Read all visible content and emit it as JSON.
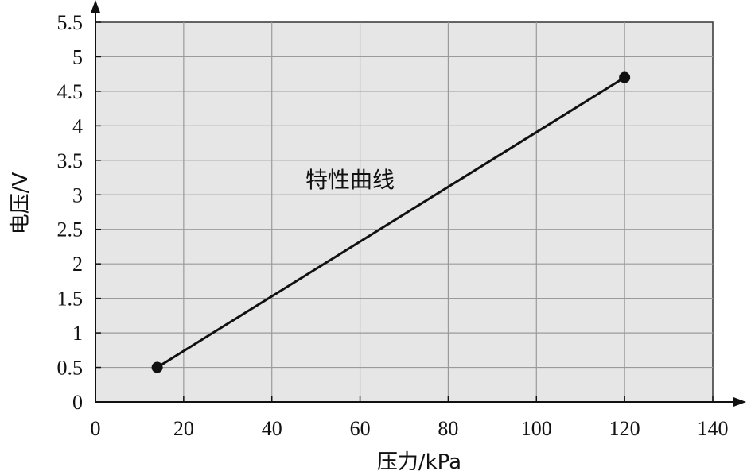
{
  "chart_data": {
    "type": "line",
    "xlabel": "压力/kPa",
    "ylabel": "电压/V",
    "xlim": [
      0,
      140
    ],
    "ylim": [
      0,
      5.5
    ],
    "x_ticks": [
      "0",
      "20",
      "40",
      "60",
      "80",
      "100",
      "120",
      "140"
    ],
    "y_ticks": [
      "0",
      "0.5",
      "1",
      "1.5",
      "2",
      "2.5",
      "3",
      "3.5",
      "4",
      "4.5",
      "5",
      "5.5"
    ],
    "grid": true,
    "series": [
      {
        "name": "特性曲线",
        "x": [
          14,
          120
        ],
        "y": [
          0.5,
          4.7
        ]
      }
    ],
    "annotation": "特性曲线",
    "colors": {
      "plot_background": "#e6e6e6",
      "grid": "#9a9a9a",
      "line": "#111111"
    }
  }
}
